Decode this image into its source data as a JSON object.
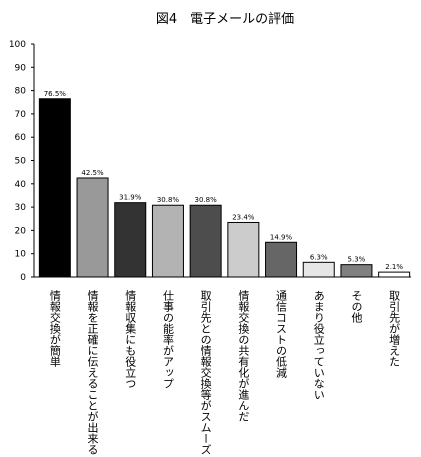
{
  "chart_data": {
    "type": "bar",
    "title": "図4　電子メールの評価",
    "categories": [
      "情報交換が簡単",
      "情報を正確に伝えることが出来る",
      "情報収集にも役立つ",
      "仕事の能率がアップ",
      "取引先との情報交換等がスムーズ",
      "情報交換の共有化が進んだ",
      "通信コストの低減",
      "あまり役立っていない",
      "その他",
      "取引先が増えた"
    ],
    "values": [
      76.5,
      42.5,
      31.9,
      30.8,
      30.8,
      23.4,
      14.9,
      6.3,
      5.3,
      2.1
    ],
    "data_labels": [
      "76.5%",
      "42.5%",
      "31.9%",
      "30.8%",
      "30.8%",
      "23.4%",
      "14.9%",
      "6.3%",
      "5.3%",
      "2.1%"
    ],
    "bar_colors": [
      "#000000",
      "#999999",
      "#333333",
      "#b3b3b3",
      "#4d4d4d",
      "#cccccc",
      "#666666",
      "#e6e6e6",
      "#808080",
      "#ffffff"
    ],
    "y_ticks": [
      "0",
      "10",
      "20",
      "30",
      "40",
      "50",
      "60",
      "70",
      "80",
      "90",
      "100"
    ],
    "ylim": [
      0,
      100
    ],
    "grid": false,
    "legend": "none"
  }
}
